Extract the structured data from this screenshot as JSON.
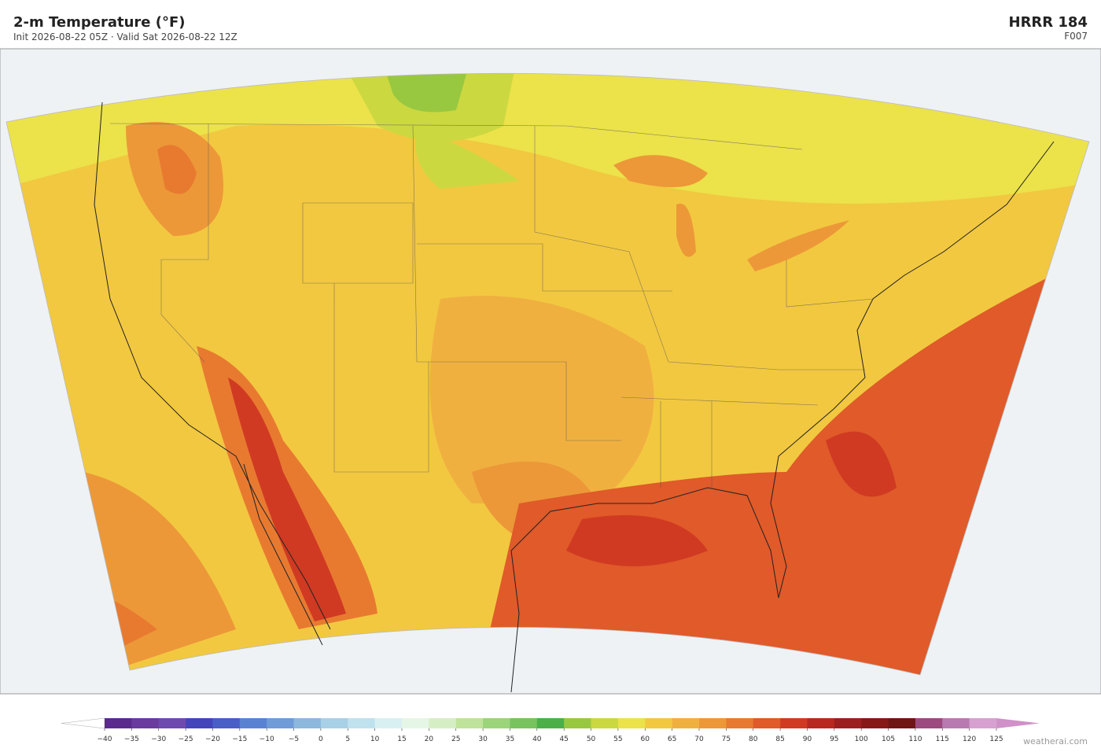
{
  "header": {
    "title": "2-m Temperature  (°F)",
    "subtitle": "Init 2026-08-22 05Z  ·  Valid Sat 2026-08-22 12Z",
    "model": "HRRR  184",
    "forecast_hour": "F007"
  },
  "colorbar": {
    "ticks": [
      {
        "value": -40,
        "label": "−40"
      },
      {
        "value": -35,
        "label": "−35"
      },
      {
        "value": -30,
        "label": "−30"
      },
      {
        "value": -25,
        "label": "−25"
      },
      {
        "value": -20,
        "label": "−20"
      },
      {
        "value": -15,
        "label": "−15"
      },
      {
        "value": -10,
        "label": "−10"
      },
      {
        "value": -5,
        "label": "−5"
      },
      0,
      5,
      10,
      15,
      20,
      25,
      30,
      35,
      40,
      45,
      50,
      55,
      60,
      65,
      70,
      75,
      80,
      85,
      90,
      95,
      100,
      105,
      110,
      115,
      120,
      125
    ],
    "colors": [
      "#5a2a8c",
      "#6a3a9e",
      "#6e4aae",
      "#4444bb",
      "#4a5ec8",
      "#5a82d2",
      "#6f9bd8",
      "#8cb8dd",
      "#a8d0e6",
      "#c0e2ee",
      "#d8f0f2",
      "#e6f6e6",
      "#d6eec4",
      "#bfe39a",
      "#9bd47a",
      "#78c35e",
      "#4caf48",
      "#98c840",
      "#ccd840",
      "#ece24a",
      "#f2c840",
      "#f0b040",
      "#ec9838",
      "#e87a30",
      "#e05a2a",
      "#d03a22",
      "#b82820",
      "#9c1e1e",
      "#861818",
      "#701414",
      "#9c4a80",
      "#b87ab0",
      "#d8a0d0"
    ],
    "under_color": "#ffffff",
    "over_color": "#d090c8"
  },
  "credit": "weatherai.com"
}
